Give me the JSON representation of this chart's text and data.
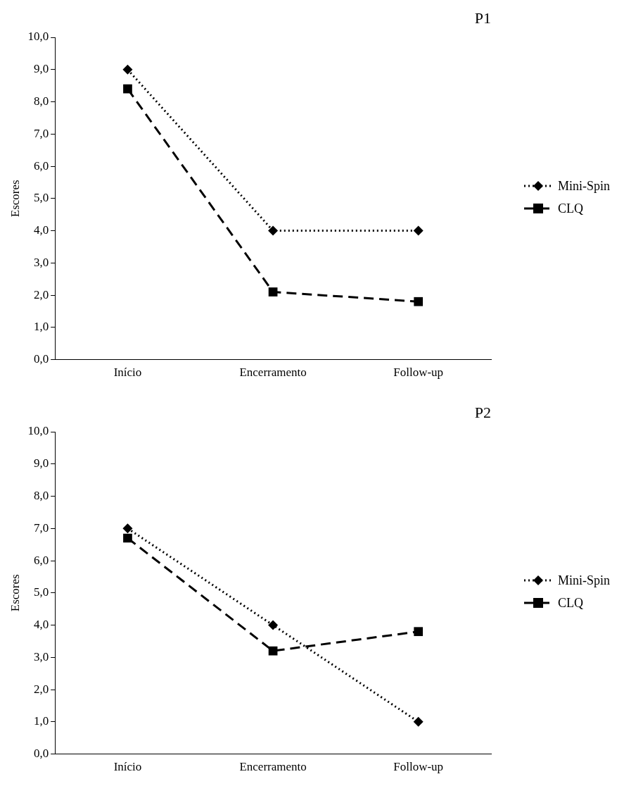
{
  "chart_data": [
    {
      "type": "line",
      "title": "P1",
      "ylabel": "Escores",
      "categories": [
        "Início",
        "Encerramento",
        "Follow-up"
      ],
      "series": [
        {
          "name": "Mini-Spin",
          "color": "#000000",
          "values": [
            9,
            4,
            4
          ],
          "marker": "diamond",
          "line_style": "dotted"
        },
        {
          "name": "CLQ",
          "color": "#000000",
          "values": [
            8.4,
            2.1,
            1.8
          ],
          "marker": "square",
          "line_style": "dashed"
        }
      ],
      "ylim": [
        0,
        10
      ],
      "yticks": [
        {
          "value": 0,
          "label": "0,0"
        },
        {
          "value": 1,
          "label": "1,0"
        },
        {
          "value": 2,
          "label": "2,0"
        },
        {
          "value": 3,
          "label": "3,0"
        },
        {
          "value": 4,
          "label": "4,0"
        },
        {
          "value": 5,
          "label": "5,0"
        },
        {
          "value": 6,
          "label": "6,0"
        },
        {
          "value": 7,
          "label": "7,0"
        },
        {
          "value": 8,
          "label": "8,0"
        },
        {
          "value": 9,
          "label": "9,0"
        },
        {
          "value": 10,
          "label": "10,0"
        }
      ],
      "grid": false,
      "legend": "right"
    },
    {
      "type": "line",
      "title": "P2",
      "ylabel": "Escores",
      "categories": [
        "Início",
        "Encerramento",
        "Follow-up"
      ],
      "series": [
        {
          "name": "Mini-Spin",
          "color": "#000000",
          "values": [
            7,
            4,
            1
          ],
          "marker": "diamond",
          "line_style": "dotted"
        },
        {
          "name": "CLQ",
          "color": "#000000",
          "values": [
            6.7,
            3.2,
            3.8
          ],
          "marker": "square",
          "line_style": "dashed"
        }
      ],
      "ylim": [
        0,
        10
      ],
      "yticks": [
        {
          "value": 0,
          "label": "0,0"
        },
        {
          "value": 1,
          "label": "1,0"
        },
        {
          "value": 2,
          "label": "2,0"
        },
        {
          "value": 3,
          "label": "3,0"
        },
        {
          "value": 4,
          "label": "4,0"
        },
        {
          "value": 5,
          "label": "5,0"
        },
        {
          "value": 6,
          "label": "6,0"
        },
        {
          "value": 7,
          "label": "7,0"
        },
        {
          "value": 8,
          "label": "8,0"
        },
        {
          "value": 9,
          "label": "9,0"
        },
        {
          "value": 10,
          "label": "10,0"
        }
      ],
      "grid": false,
      "legend": "right"
    }
  ]
}
